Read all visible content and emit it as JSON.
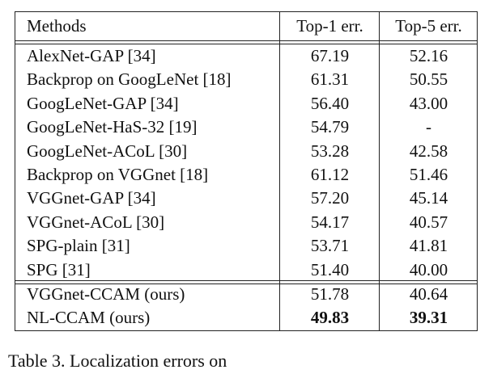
{
  "table": {
    "header": [
      "Methods",
      "Top-1 err.",
      "Top-5 err."
    ],
    "groups": [
      [
        [
          "AlexNet-GAP [34]",
          "67.19",
          "52.16"
        ],
        [
          "Backprop on GoogLeNet [18]",
          "61.31",
          "50.55"
        ],
        [
          "GoogLeNet-GAP [34]",
          "56.40",
          "43.00"
        ],
        [
          "GoogLeNet-HaS-32 [19]",
          "54.79",
          "-"
        ],
        [
          "GoogLeNet-ACoL [30]",
          "53.28",
          "42.58"
        ],
        [
          "Backprop on VGGnet [18]",
          "61.12",
          "51.46"
        ],
        [
          "VGGnet-GAP [34]",
          "57.20",
          "45.14"
        ],
        [
          "VGGnet-ACoL [30]",
          "54.17",
          "40.57"
        ],
        [
          "SPG-plain [31]",
          "53.71",
          "41.81"
        ],
        [
          "SPG [31]",
          "51.40",
          "40.00"
        ]
      ],
      [
        [
          "VGGnet-CCAM (ours)",
          "51.78",
          "40.64"
        ],
        [
          "NL-CCAM (ours)",
          "49.83",
          "39.31"
        ]
      ]
    ]
  },
  "caption": "Table 3. Localization errors on"
}
